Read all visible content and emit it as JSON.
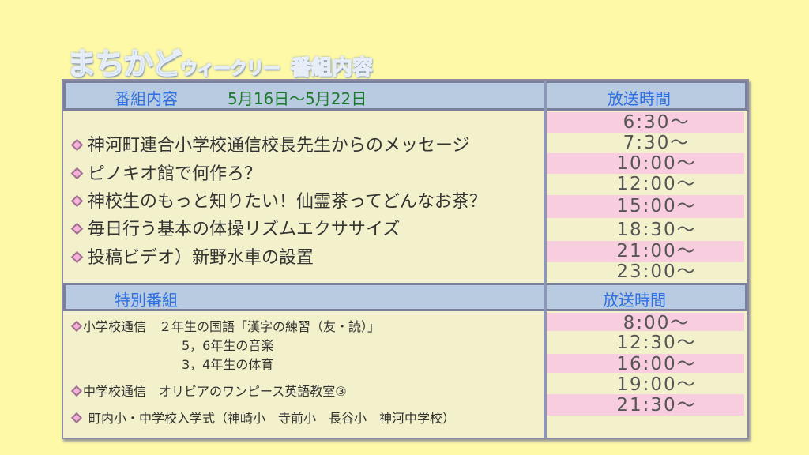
{
  "title": {
    "brand": "まちかど",
    "brand_sub": "ウィークリー",
    "section": "番組内容"
  },
  "regular": {
    "header_label": "番組内容",
    "date_range": "5月16日〜5月22日",
    "time_header": "放送時間",
    "items": [
      "神河町連合小学校通信校長先生からのメッセージ",
      "ピノキオ館で何作ろ？",
      "神校生のもっと知りたい！仙霊茶ってどんなお茶？",
      "毎日行う基本の体操リズムエクササイズ",
      "投稿ビデオ）新野水車の設置"
    ],
    "times": [
      "6:30〜",
      "7:30〜",
      "10:00〜",
      "12:00〜",
      "15:00〜",
      "18:30〜",
      "21:00〜",
      "23:00〜"
    ]
  },
  "special": {
    "header_label": "特別番組",
    "time_header": "放送時間",
    "items": [
      "小学校通信　２年生の国語「漢字の練習（友・読）」",
      "5，6年生の音楽",
      "3，4年生の体育",
      "中学校通信　オリビアのワンピース英語教室③",
      "町内小・中学校入学式（神崎小　寺前小　長谷小　神河中学校）"
    ],
    "times": [
      "8:00〜",
      "12:30〜",
      "16:00〜",
      "19:00〜",
      "21:30〜"
    ]
  },
  "colors": {
    "background": "#fdf9a6",
    "panel": "#f3f1cb",
    "header": "#b9cbe0",
    "stripe": "#f8cde0",
    "header_text": "#2c6fe0",
    "date_text": "#1a7a2a"
  }
}
